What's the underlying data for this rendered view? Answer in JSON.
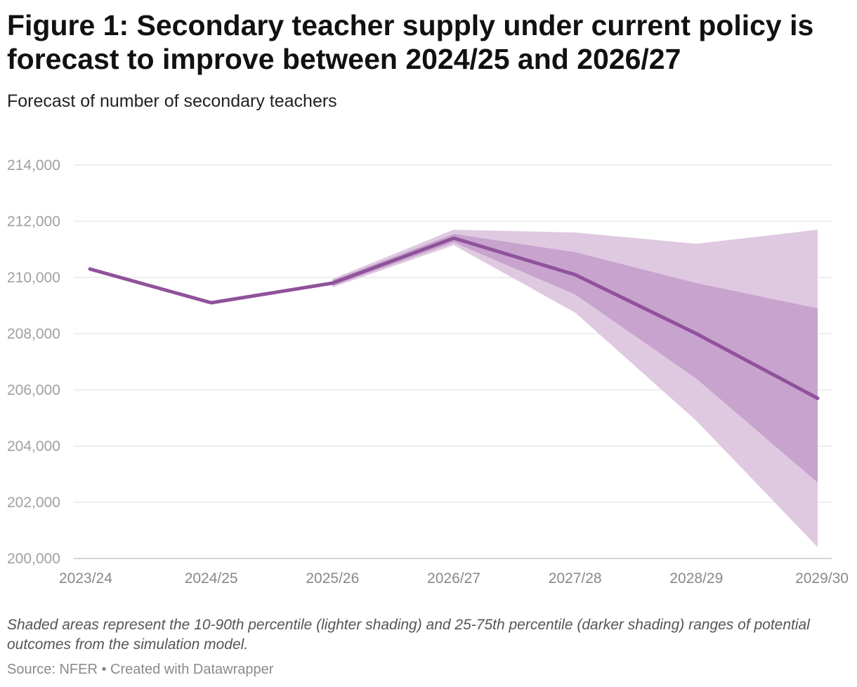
{
  "chart_data": {
    "type": "area",
    "title": "Figure 1: Secondary teacher supply under current policy is forecast to improve between 2024/25 and 2026/27",
    "subtitle": "Forecast of number of secondary teachers",
    "categories": [
      "2023/24",
      "2024/25",
      "2025/26",
      "2026/27",
      "2027/28",
      "2028/29",
      "2029/30"
    ],
    "y_ticks": [
      "200,000",
      "202,000",
      "204,000",
      "206,000",
      "208,000",
      "210,000",
      "212,000",
      "214,000"
    ],
    "ylim": [
      200000,
      214000
    ],
    "series": [
      {
        "name": "Forecast",
        "values": [
          210300,
          209100,
          209800,
          211400,
          210100,
          208000,
          205700
        ]
      }
    ],
    "bands": [
      {
        "name": "10-90th percentile",
        "start_index": 2,
        "low": [
          209650,
          211150,
          208750,
          204900,
          200400
        ],
        "high": [
          209950,
          211700,
          211600,
          211200,
          211700
        ]
      },
      {
        "name": "25-75th percentile",
        "start_index": 2,
        "low": [
          209700,
          211250,
          209400,
          206400,
          202700
        ],
        "high": [
          209900,
          211550,
          210900,
          209800,
          208900
        ]
      }
    ],
    "colors": {
      "line": "#8f529b",
      "band_outer": "#dfc9e0",
      "band_inner": "#c8a3ce",
      "grid": "#dcdcdc",
      "axis": "#c7c7c7"
    },
    "grid": true,
    "xlabel": "",
    "ylabel": ""
  },
  "notes": "Shaded areas represent the 10-90th percentile (lighter shading) and 25-75th percentile (darker shading) ranges of potential outcomes from the simulation model.",
  "source": "Source: NFER • Created with Datawrapper"
}
